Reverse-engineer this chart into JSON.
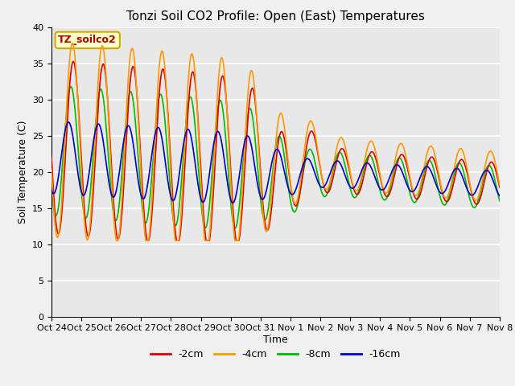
{
  "title": "Tonzi Soil CO2 Profile: Open (East) Temperatures",
  "xlabel": "Time",
  "ylabel": "Soil Temperature (C)",
  "ylim": [
    0,
    40
  ],
  "xlim": [
    0,
    15
  ],
  "fig_facecolor": "#f0f0f0",
  "plot_bg_color": "#e8e8e8",
  "grid_color": "white",
  "annotation_text": "TZ_soilco2",
  "annotation_bg": "#ffffcc",
  "annotation_border": "#ccaa00",
  "annotation_fg": "#aa0000",
  "xtick_labels": [
    "Oct 24",
    "Oct 25",
    "Oct 26",
    "Oct 27",
    "Oct 28",
    "Oct 29",
    "Oct 30",
    "Oct 31",
    "Nov 1",
    "Nov 2",
    "Nov 3",
    "Nov 4",
    "Nov 5",
    "Nov 6",
    "Nov 7",
    "Nov 8"
  ],
  "series_colors": [
    "#dd0000",
    "#ff9900",
    "#00bb00",
    "#0000cc"
  ],
  "series_labels": [
    "-2cm",
    "-4cm",
    "-8cm",
    "-16cm"
  ],
  "series_linewidth": 1.2,
  "title_fontsize": 11,
  "tick_fontsize": 8,
  "legend_fontsize": 9
}
